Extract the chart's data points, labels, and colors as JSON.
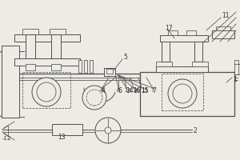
{
  "bg_color": "#eeebe5",
  "line_color": "#505050",
  "text_color": "#303030",
  "lw_main": 0.9,
  "lw_thin": 0.55,
  "lw_med": 0.7
}
